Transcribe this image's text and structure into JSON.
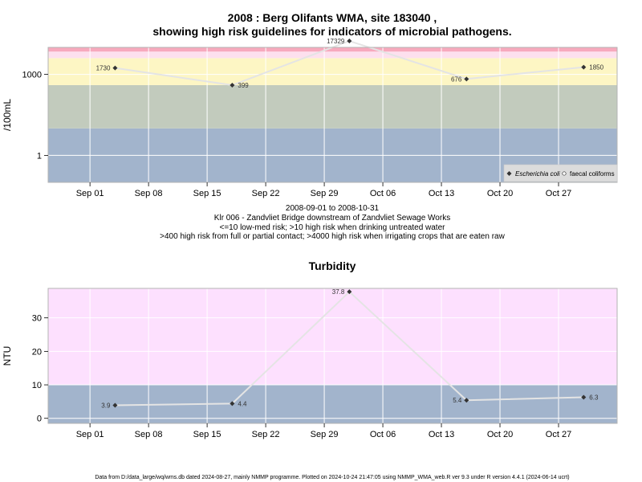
{
  "chart_data": [
    {
      "type": "line",
      "title": "2008 : Berg Olifants WMA, site 183040 ,",
      "subtitle": "showing high risk guidelines for indicators of microbial pathogens.",
      "ylabel": "/100mL",
      "yscale": "log10",
      "ylim": [
        0.1,
        10000
      ],
      "ytick_labels": [
        {
          "value": 1,
          "label": "1"
        },
        {
          "value": 1000,
          "label": "1000"
        }
      ],
      "xlim": [
        "2008-08-27",
        "2008-11-03"
      ],
      "xtick_labels": [
        "Sep 01",
        "Sep 08",
        "Sep 15",
        "Sep 22",
        "Sep 29",
        "Oct 06",
        "Oct 13",
        "Oct 20",
        "Oct 27"
      ],
      "xtick_dates": [
        "2008-09-01",
        "2008-09-08",
        "2008-09-15",
        "2008-09-22",
        "2008-09-29",
        "2008-10-06",
        "2008-10-13",
        "2008-10-20",
        "2008-10-27"
      ],
      "grid": true,
      "bands": [
        {
          "from": 0.1,
          "to": 10,
          "color": "#a2b4cc"
        },
        {
          "from": 10,
          "to": 400,
          "color": "#c2cbbd"
        },
        {
          "from": 400,
          "to": 4000,
          "color": "#fdf6c4"
        },
        {
          "from": 4000,
          "to": 7000,
          "color": "#fde0ee"
        },
        {
          "from": 7000,
          "to": 10000,
          "color": "#f7a9bd"
        }
      ],
      "series": [
        {
          "name": "Escherichia coli",
          "line_color": "#e4e4e4",
          "x": [
            "2008-09-04",
            "2008-09-18",
            "2008-10-02",
            "2008-10-16",
            "2008-10-30"
          ],
          "values": [
            1730,
            399,
            17329,
            676,
            1850
          ],
          "labels": [
            "1730",
            "399",
            "17329",
            "676",
            "1850"
          ],
          "label_side": [
            "left",
            "right",
            "left",
            "left",
            "right"
          ]
        }
      ],
      "legend": {
        "placement": "bottom-right",
        "entries": [
          {
            "label": "Escherichia coli",
            "marker": "filled-diamond"
          },
          {
            "label": "faecal coliforms",
            "marker": "open-circle"
          }
        ]
      },
      "caption_lines": [
        "2008-09-01 to 2008-10-31",
        "Klr 006 - Zandvliet Bridge downstream of Zandvliet Sewage Works",
        "<=10 low-med risk; >10 high risk when drinking untreated water",
        ">400 high risk from full or partial contact; >4000 high risk when irrigating crops that are eaten raw"
      ]
    },
    {
      "type": "line",
      "title": "Turbidity",
      "ylabel": "NTU",
      "ylim": [
        -1.5,
        38.8
      ],
      "ytick_labels": [
        {
          "value": 0,
          "label": "0"
        },
        {
          "value": 10,
          "label": "10"
        },
        {
          "value": 20,
          "label": "20"
        },
        {
          "value": 30,
          "label": "30"
        }
      ],
      "xlim": [
        "2008-08-27",
        "2008-11-03"
      ],
      "xtick_labels": [
        "Sep 01",
        "Sep 08",
        "Sep 15",
        "Sep 22",
        "Sep 29",
        "Oct 06",
        "Oct 13",
        "Oct 20",
        "Oct 27"
      ],
      "xtick_dates": [
        "2008-09-01",
        "2008-09-08",
        "2008-09-15",
        "2008-09-22",
        "2008-09-29",
        "2008-10-06",
        "2008-10-13",
        "2008-10-20",
        "2008-10-27"
      ],
      "grid": true,
      "bands": [
        {
          "from": -1.5,
          "to": 10,
          "color": "#a2b4cc"
        },
        {
          "from": 10,
          "to": 38.8,
          "color": "#fde0fe"
        }
      ],
      "series": [
        {
          "line_color": "#e4e4e4",
          "x": [
            "2008-09-04",
            "2008-09-18",
            "2008-10-02",
            "2008-10-16",
            "2008-10-30"
          ],
          "values": [
            3.9,
            4.4,
            37.8,
            5.4,
            6.3
          ],
          "labels": [
            "3.9",
            "4.4",
            "37.8",
            "5.4",
            "6.3"
          ],
          "label_side": [
            "left",
            "right",
            "left",
            "left",
            "right"
          ]
        }
      ]
    }
  ],
  "footer": "Data from D:/data_large/wq/wms.db dated 2024-08-27, mainly NMMP programme. Plotted on 2024-10-24 21:47:05 using NMMP_WMA_web.R ver 9.3 under R version 4.4.1 (2024-06-14 ucrt)"
}
